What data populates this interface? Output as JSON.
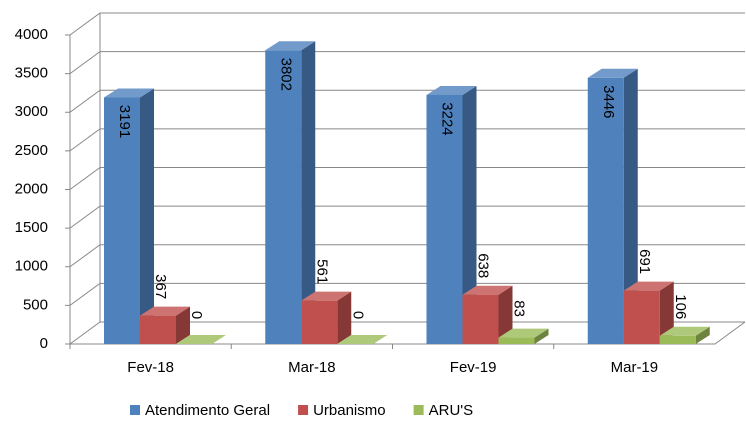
{
  "chart_data": {
    "type": "bar3d",
    "categories": [
      "Fev-18",
      "Mar-18",
      "Fev-19",
      "Mar-19"
    ],
    "series": [
      {
        "name": "Atendimento Geral",
        "color": "#4f81bd",
        "values": [
          3191,
          3802,
          3224,
          3446
        ]
      },
      {
        "name": "Urbanismo",
        "color": "#c0504d",
        "values": [
          367,
          561,
          638,
          691
        ]
      },
      {
        "name": "ARU'S",
        "color": "#9bbb59",
        "values": [
          0,
          0,
          83,
          106
        ]
      }
    ],
    "ylim": [
      0,
      4000
    ],
    "yticks": [
      0,
      500,
      1000,
      1500,
      2000,
      2500,
      3000,
      3500,
      4000
    ],
    "grid": true,
    "legend": "bottom"
  }
}
